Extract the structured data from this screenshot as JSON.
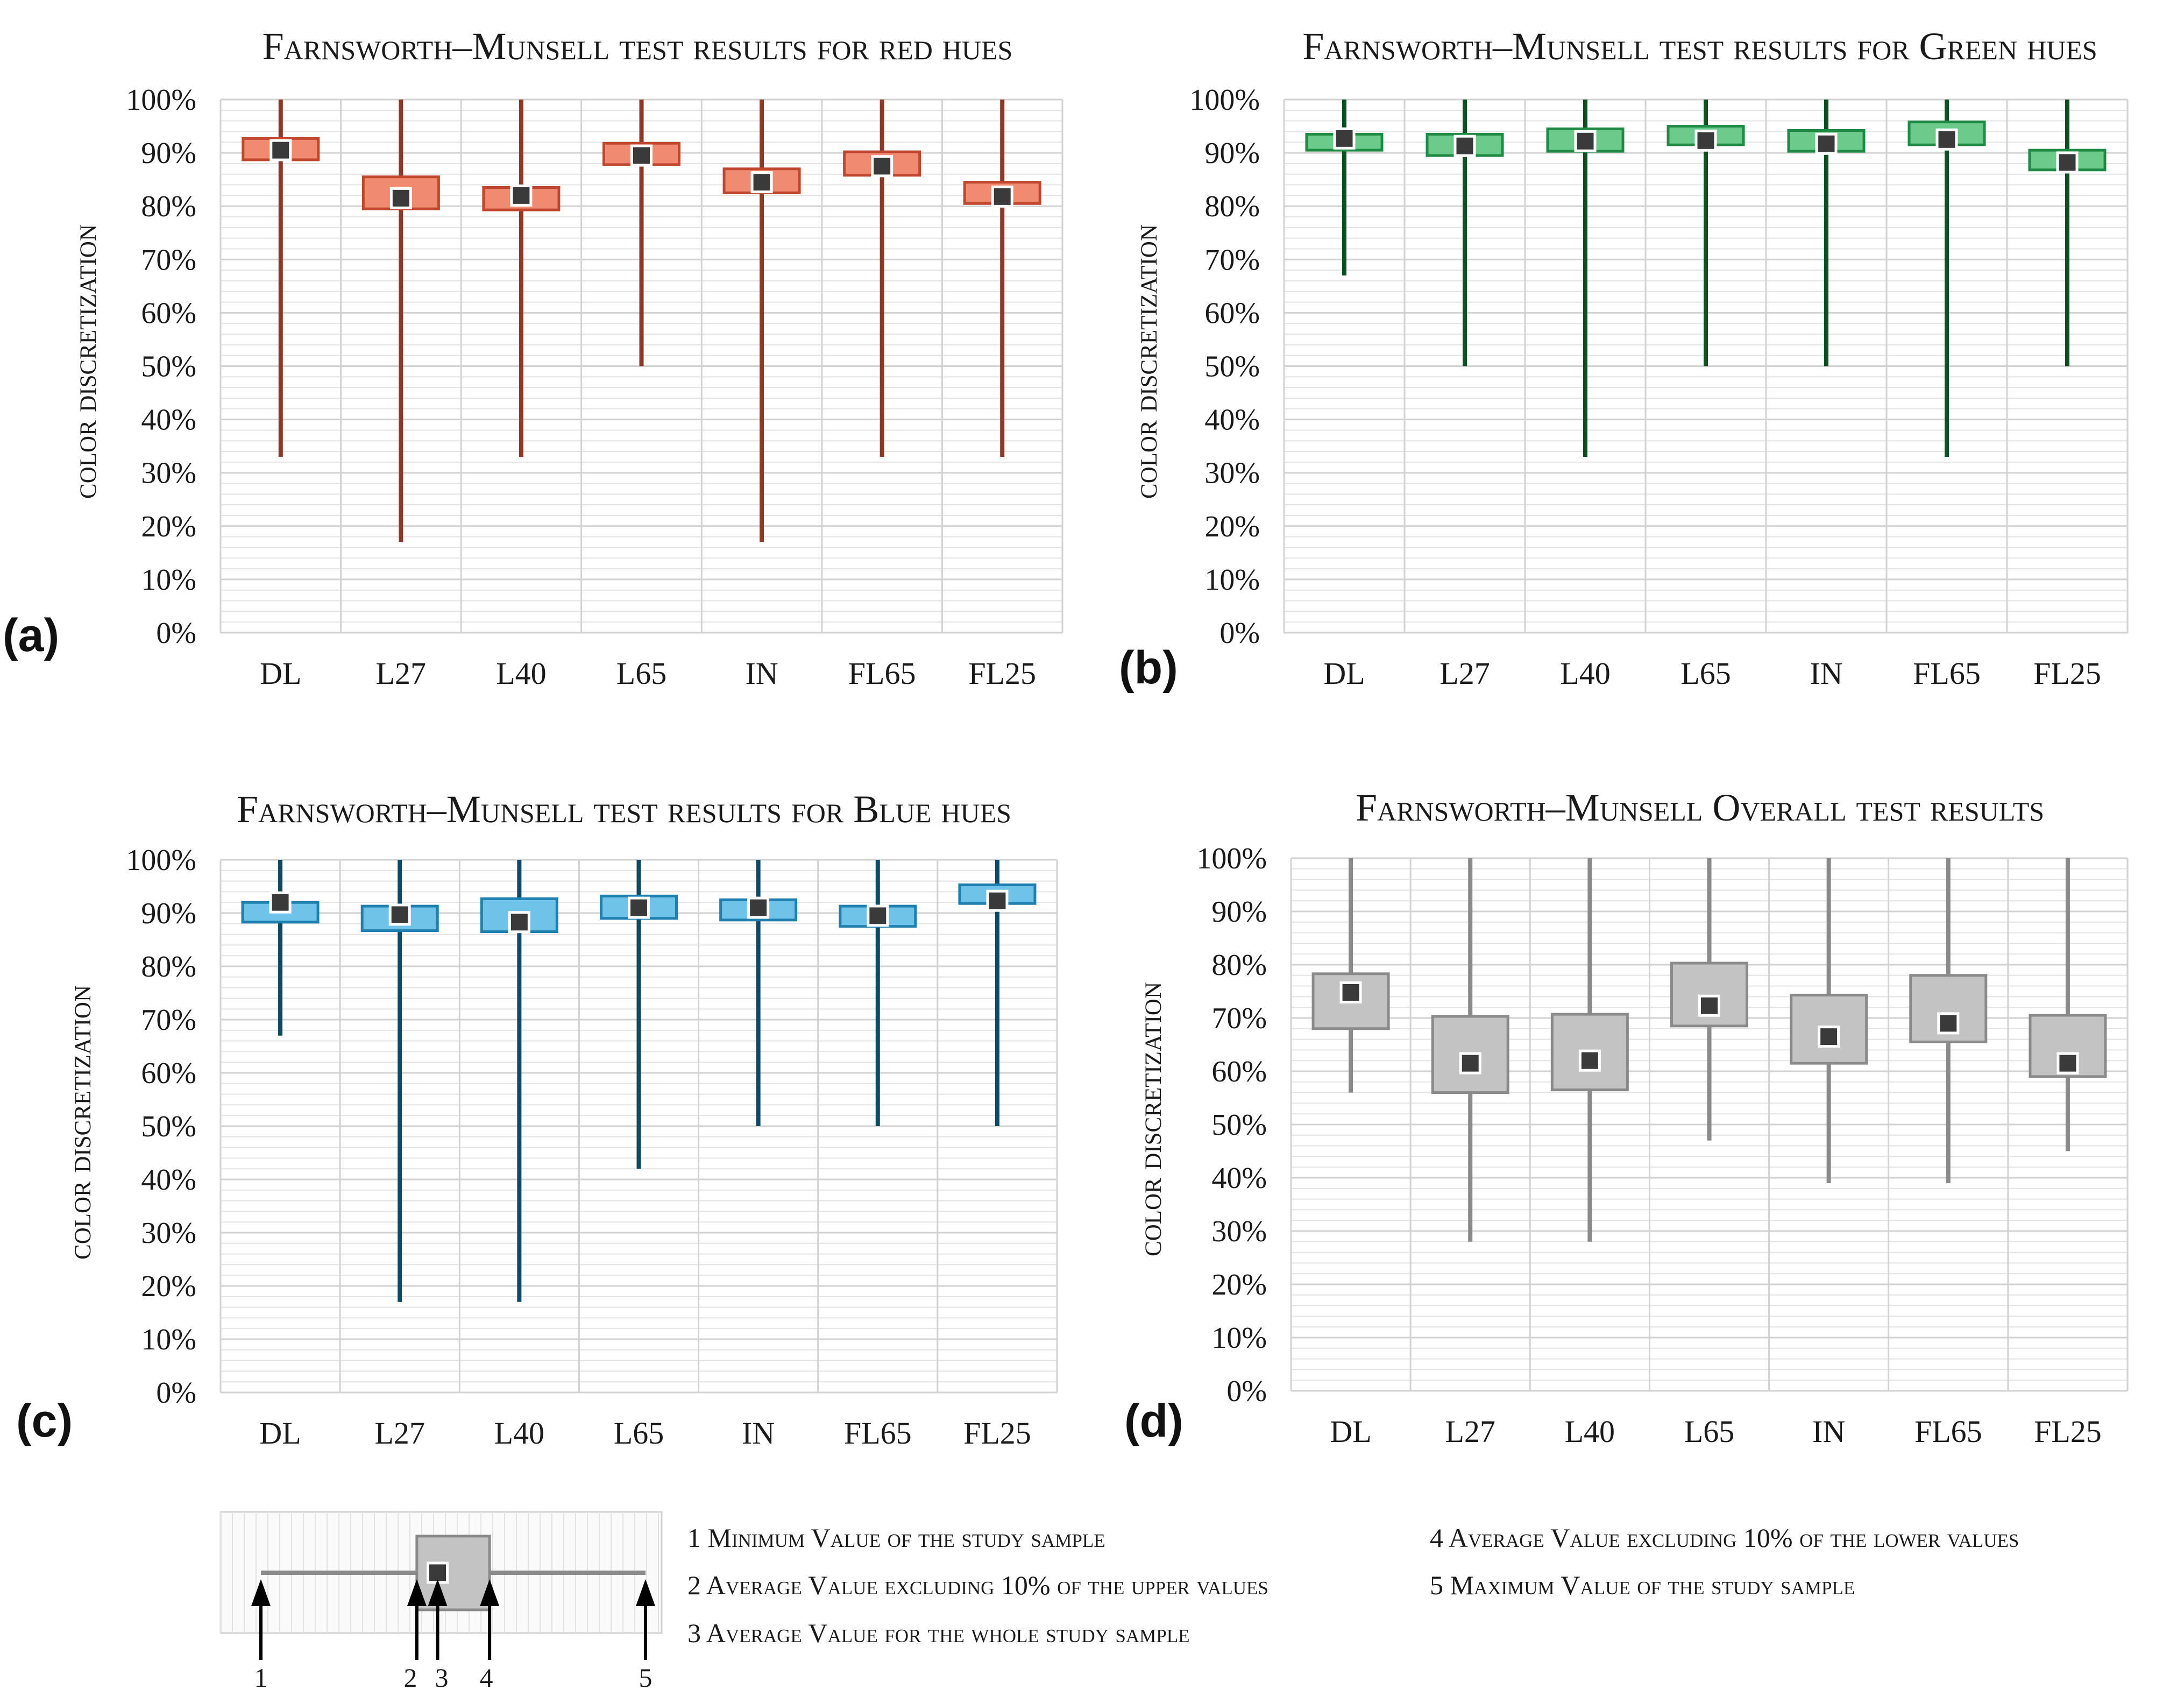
{
  "chart_data": [
    {
      "type": "box",
      "panel_label": "(a)",
      "title": "Farnsworth–Munsell test results for red hues",
      "ylabel": "color discretization",
      "ylim": [
        0,
        100
      ],
      "yticks": [
        "0%",
        "10%",
        "20%",
        "30%",
        "40%",
        "50%",
        "60%",
        "70%",
        "80%",
        "90%",
        "100%"
      ],
      "categories": [
        "DL",
        "L27",
        "L40",
        "L65",
        "IN",
        "FL65",
        "FL25"
      ],
      "min": [
        33,
        17,
        33,
        50,
        17,
        33,
        33
      ],
      "box_low": [
        88.7,
        79.5,
        79.3,
        87.8,
        82.5,
        85.8,
        80.5
      ],
      "mean": [
        90.5,
        81.5,
        82,
        89.5,
        84.5,
        87.5,
        81.8
      ],
      "box_high": [
        92.7,
        85.5,
        83.5,
        91.8,
        87,
        90.2,
        84.5
      ],
      "max": [
        100,
        100,
        100,
        100,
        100,
        100,
        100
      ],
      "colors": {
        "whisker": "#8B3A28",
        "box_fill": "#F08A70",
        "box_stroke": "#C0462E"
      }
    },
    {
      "type": "box",
      "panel_label": "(b)",
      "title": "Farnsworth–Munsell test results for Green hues",
      "ylabel": "color discretization",
      "ylim": [
        0,
        100
      ],
      "yticks": [
        "0%",
        "10%",
        "20%",
        "30%",
        "40%",
        "50%",
        "60%",
        "70%",
        "80%",
        "90%",
        "100%"
      ],
      "categories": [
        "DL",
        "L27",
        "L40",
        "L65",
        "IN",
        "FL65",
        "FL25"
      ],
      "min": [
        67,
        50,
        33,
        50,
        50,
        33,
        50
      ],
      "box_low": [
        90.5,
        89.5,
        90.3,
        91.5,
        90.3,
        91.5,
        86.8
      ],
      "mean": [
        92.7,
        91.3,
        92.2,
        92.3,
        91.7,
        92.5,
        88.2
      ],
      "box_high": [
        93.5,
        93.5,
        94.5,
        95,
        94.2,
        95.8,
        90.5
      ],
      "max": [
        100,
        100,
        100,
        100,
        100,
        100,
        100
      ],
      "colors": {
        "whisker": "#0F4F24",
        "box_fill": "#6CCB8B",
        "box_stroke": "#1E8A43"
      }
    },
    {
      "type": "box",
      "panel_label": "(c)",
      "title": "Farnsworth–Munsell test results for Blue hues",
      "ylabel": "color discretization",
      "ylim": [
        0,
        100
      ],
      "yticks": [
        "0%",
        "10%",
        "20%",
        "30%",
        "40%",
        "50%",
        "60%",
        "70%",
        "80%",
        "90%",
        "100%"
      ],
      "categories": [
        "DL",
        "L27",
        "L40",
        "L65",
        "IN",
        "FL65",
        "FL25"
      ],
      "min": [
        67,
        17,
        17,
        42,
        50,
        50,
        50
      ],
      "box_low": [
        88.3,
        86.7,
        86.5,
        89,
        88.7,
        87.5,
        91.8
      ],
      "mean": [
        92,
        89.7,
        88.3,
        91,
        91,
        89.5,
        92.3
      ],
      "box_high": [
        92,
        91.3,
        92.7,
        93.2,
        92.5,
        91.3,
        95.3
      ],
      "max": [
        100,
        100,
        100,
        100,
        100,
        100,
        100
      ],
      "colors": {
        "whisker": "#0D4A66",
        "box_fill": "#6FC3E8",
        "box_stroke": "#1F7FAE"
      }
    },
    {
      "type": "box",
      "panel_label": "(d)",
      "title": "Farnsworth–Munsell Overall test results",
      "ylabel": "color discretization",
      "ylim": [
        0,
        100
      ],
      "yticks": [
        "0%",
        "10%",
        "20%",
        "30%",
        "40%",
        "50%",
        "60%",
        "70%",
        "80%",
        "90%",
        "100%"
      ],
      "categories": [
        "DL",
        "L27",
        "L40",
        "L65",
        "IN",
        "FL65",
        "FL25"
      ],
      "min": [
        56,
        28,
        28,
        47,
        39,
        39,
        45
      ],
      "box_low": [
        68,
        56,
        56.5,
        68.5,
        61.5,
        65.5,
        59
      ],
      "mean": [
        74.8,
        61.5,
        62,
        72.3,
        66.5,
        69,
        61.5
      ],
      "box_high": [
        78.3,
        70.3,
        70.7,
        80.3,
        74.3,
        78,
        70.5
      ],
      "max": [
        100,
        100,
        100,
        100,
        100,
        100,
        100
      ],
      "colors": {
        "whisker": "#8A8A8A",
        "box_fill": "#C3C3C3",
        "box_stroke": "#8A8A8A"
      }
    }
  ],
  "legend": {
    "numbers": [
      "1",
      "2",
      "3",
      "4",
      "5"
    ],
    "items": [
      "1 Minimum Value of the study sample",
      "2 Average Value excluding 10% of the upper values",
      "3 Average Value for the whole study sample",
      "4 Average Value excluding 10% of the lower values",
      "5 Maximum Value of the study sample"
    ],
    "example": {
      "min": 0,
      "box_low": 30,
      "mean": 34,
      "box_high": 44,
      "max": 74
    }
  },
  "colors": {
    "mean_marker": "#3a3a3a",
    "grid": "#e3e3e3",
    "grid_major": "#d2d2d2",
    "axis": "#b0b0b0"
  }
}
